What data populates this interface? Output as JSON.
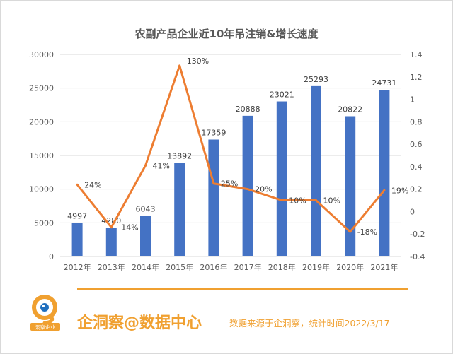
{
  "chart_data": {
    "type": "bar",
    "title": "农副产品企业近10年吊注销&增长速度",
    "categories": [
      "2012年",
      "2013年",
      "2014年",
      "2015年",
      "2016年",
      "2017年",
      "2018年",
      "2019年",
      "2020年",
      "2021年"
    ],
    "series": [
      {
        "values": [
          4997,
          4280,
          6043,
          13892,
          17359,
          20888,
          23021,
          25293,
          20822,
          24731
        ],
        "data_labels": [
          "4997",
          "4280",
          "6043",
          "13892",
          "17359",
          "20888",
          "23021",
          "25293",
          "20822",
          "24731"
        ],
        "color": "#4472c4",
        "axis": "left",
        "type": "bar"
      },
      {
        "values": [
          0.24,
          -0.14,
          0.41,
          1.3,
          0.25,
          0.2,
          0.1,
          0.1,
          -0.18,
          0.19
        ],
        "data_labels": [
          "24%",
          "-14%",
          "41%",
          "130%",
          "25%",
          "20%",
          "10%",
          "10%",
          "-18%",
          "19%"
        ],
        "color": "#ed7d31",
        "axis": "right",
        "type": "line"
      }
    ],
    "y_left": {
      "ylim": [
        0,
        30000
      ],
      "ticks": [
        "0",
        "5000",
        "10000",
        "15000",
        "20000",
        "25000",
        "30000"
      ]
    },
    "y_right": {
      "ylim": [
        -0.4,
        1.4
      ],
      "ticks": [
        "-0.4",
        "-0.2",
        "0",
        "0.2",
        "0.4",
        "0.6",
        "0.8",
        "1",
        "1.2",
        "1.4"
      ]
    },
    "grid": true,
    "legend": "none"
  },
  "footer": {
    "brand": "企洞察@数据中心",
    "logo_text": "洞察企业",
    "note": "数据来源于企洞察，统计时间2022/3/17",
    "accent": "#f0a030"
  }
}
